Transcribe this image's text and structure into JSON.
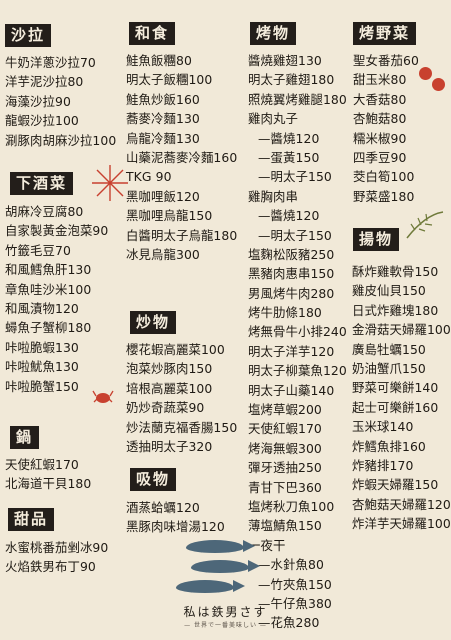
{
  "sections": {
    "salad": {
      "title": "沙拉",
      "items": [
        "牛奶洋蔥沙拉70",
        "洋芋泥沙拉80",
        "海藻沙拉90",
        "龍蝦沙拉100",
        "涮豚肉胡麻沙拉100"
      ]
    },
    "side_dishes": {
      "title": "下酒菜",
      "items": [
        "胡麻冷豆腐80",
        "自家製黃金泡菜90",
        "竹籤毛豆70",
        "和風鱈魚肝130",
        "章魚哇沙米100",
        "和風漬物120",
        "蟳魚子蟹柳180",
        "咔啦脆蝦130",
        "咔啦魷魚130",
        "咔啦脆蟹150"
      ]
    },
    "hotpot": {
      "title": "鍋",
      "items": [
        "天使紅蝦170",
        "北海道干貝180"
      ]
    },
    "dessert": {
      "title": "甜品",
      "items": [
        "水蜜桃番茄剉冰90",
        "火焰鉄男布丁90"
      ]
    },
    "washoku": {
      "title": "和食",
      "items": [
        "鮭魚飯糰80",
        "明太子飯糰100",
        "鮭魚炒飯160",
        "蕎麥冷麵130",
        "烏龍冷麵130",
        "山藥泥蕎麥冷麵160",
        "TKG 90",
        "黑咖哩飯120",
        "黑咖哩烏龍150",
        "白醬明太子烏龍180",
        "冰見烏龍300"
      ]
    },
    "stirfry": {
      "title": "炒物",
      "items": [
        "櫻花蝦高麗菜100",
        "泡菜炒豚肉150",
        "培根高麗菜100",
        "奶炒奇蔬菜90",
        "炒法蘭克福香腸150",
        "透抽明太子320"
      ]
    },
    "soup": {
      "title": "吸物",
      "items": [
        "酒蒸蛤蠣120",
        "黑豚肉味增湯120"
      ]
    },
    "grill": {
      "title": "烤物",
      "items": [
        "醬燒雞翅130",
        "明太子雞翅180",
        "照燒翼烤雞腿180",
        "雞肉丸子",
        "—醬燒120",
        "—蛋黃150",
        "—明太子150",
        "雞胸肉串",
        "—醬燒120",
        "—明太子150",
        "塩麴松阪豬250",
        "黑豬肉惠串150",
        "男風烤牛肉280",
        "烤牛肋條180",
        "烤無骨牛小排240",
        "明太子洋芋120",
        "明太子柳葉魚120",
        "明太子山藥140",
        "塩烤草蝦200",
        "天使紅蝦170",
        "烤海無蝦300",
        "彈牙透抽250",
        "青甘下巴360",
        "塩烤秋刀魚100",
        "薄塩鯖魚150",
        "一夜干",
        "—水針魚80",
        "—竹夾魚150",
        "—午仔魚380",
        "—花魚280"
      ]
    },
    "grilled_veg": {
      "title": "烤野菜",
      "items": [
        "聖女番茄60",
        "甜玉米80",
        "大香菇80",
        "杏鮑菇80",
        "糯米椒90",
        "四季豆90",
        "茭白筍100",
        "野菜盛180"
      ]
    },
    "fried": {
      "title": "揚物",
      "items": [
        "酥炸雞軟骨150",
        "雞皮仙貝150",
        "日式炸雞塊180",
        "金滑菇天婦羅100",
        "廣島牡蠣150",
        "奶油蟹爪150",
        "野菜可樂餅140",
        "起士可樂餅160",
        "玉米球140",
        "炸鱈魚排160",
        "炸豬排170",
        "炸蝦天婦羅150",
        "杏鮑菇天婦羅120",
        "炸洋芋天婦羅100"
      ]
    }
  },
  "brand": {
    "logo": "私は鉄男さす",
    "tagline": "— 世界で一番美味しい —"
  },
  "colors": {
    "background": "#f1e9d8",
    "header_bg": "#231e1a",
    "text": "#1f1a14",
    "accent_red": "#c8412f",
    "fish_blue": "#4d6779"
  }
}
